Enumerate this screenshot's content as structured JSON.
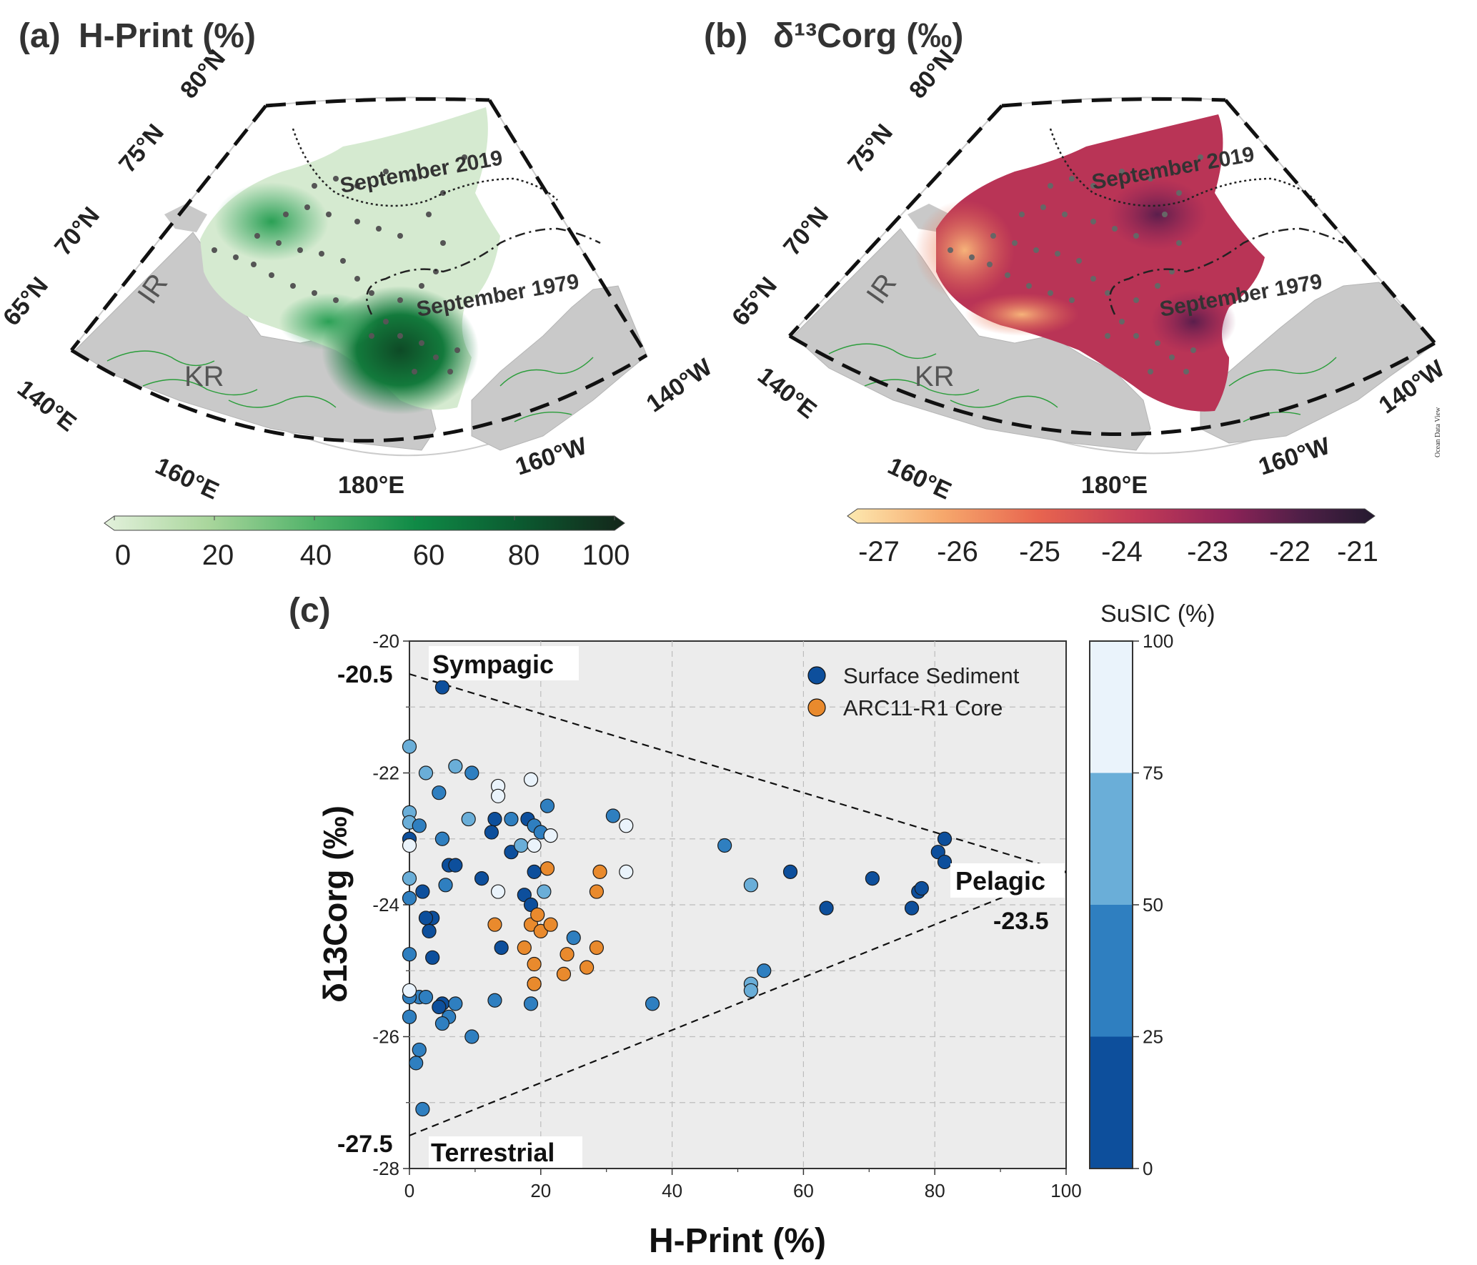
{
  "panel_a": {
    "label": "(a)",
    "title": "H-Print (%)",
    "lat_labels": [
      "80°N",
      "75°N",
      "70°N",
      "65°N"
    ],
    "lon_labels": [
      "140°E",
      "160°E",
      "180°E",
      "160°W",
      "140°W"
    ],
    "regions": [
      "IR",
      "KR"
    ],
    "ice_lines": [
      "September 2019",
      "September 1979"
    ],
    "colorbar_ticks": [
      "0",
      "20",
      "40",
      "60",
      "80",
      "100"
    ],
    "colorbar_colors": [
      "#e3f1dc",
      "#a9d69c",
      "#52b36a",
      "#0f8a46",
      "#0b5a30",
      "#14261a"
    ]
  },
  "panel_b": {
    "label": "(b)",
    "title": "δ¹³Corg (‰)",
    "lat_labels": [
      "80°N",
      "75°N",
      "70°N",
      "65°N"
    ],
    "lon_labels": [
      "140°E",
      "160°E",
      "180°E",
      "160°W",
      "140°W"
    ],
    "regions": [
      "IR",
      "KR"
    ],
    "ice_lines": [
      "September 2019",
      "September 1979"
    ],
    "watermark": "Ocean Data View",
    "colorbar_ticks": [
      "-27",
      "-26",
      "-25",
      "-24",
      "-23",
      "-22",
      "-21"
    ],
    "colorbar_colors": [
      "#fde9b0",
      "#f6a86c",
      "#e8654f",
      "#c23a57",
      "#8f2358",
      "#4f1f47",
      "#241a2f"
    ]
  },
  "panel_c": {
    "label": "(c)",
    "colorbar_title": "SuSIC (%)",
    "colorbar_ticks": [
      "0",
      "25",
      "50",
      "75",
      "100"
    ],
    "annotations": {
      "sympagic": "Sympagic",
      "pelagic": "Pelagic",
      "terrestrial": "Terrestrial",
      "sympagic_value": "-20.5",
      "pelagic_value": "-23.5",
      "terrestrial_value": "-27.5"
    }
  },
  "chart_data": {
    "type": "scatter",
    "xlabel": "H-Print (%)",
    "ylabel": "δ13Corg (‰)",
    "xlim": [
      0,
      100
    ],
    "ylim": [
      -28,
      -20
    ],
    "xticks": [
      "0",
      "20",
      "40",
      "60",
      "80",
      "100"
    ],
    "yticks": [
      "-28",
      "-26",
      "-24",
      "-22",
      "-20"
    ],
    "grid": true,
    "legend_position": "top-right",
    "mixing_lines": [
      {
        "from": [
          0,
          -20.5
        ],
        "to": [
          100,
          -23.5
        ]
      },
      {
        "from": [
          0,
          -27.5
        ],
        "to": [
          100,
          -23.5
        ]
      }
    ],
    "series": [
      {
        "name": "Surface Sediment",
        "legend_color": "#0d4f9c",
        "color_scale": {
          "name": "SuSIC (%)",
          "bins": [
            0,
            25,
            50,
            75,
            100
          ],
          "colors": [
            "#0d4f9c",
            "#2f7fc0",
            "#6aaed8",
            "#eaf3fb"
          ]
        },
        "points": [
          {
            "x": 5,
            "y": -20.7,
            "c": 10
          },
          {
            "x": 0,
            "y": -21.6,
            "c": 60
          },
          {
            "x": 2.5,
            "y": -22.0,
            "c": 55
          },
          {
            "x": 4.5,
            "y": -22.3,
            "c": 40
          },
          {
            "x": 7,
            "y": -21.9,
            "c": 55
          },
          {
            "x": 9.5,
            "y": -22.0,
            "c": 40
          },
          {
            "x": 0,
            "y": -22.6,
            "c": 60
          },
          {
            "x": 0,
            "y": -22.75,
            "c": 60
          },
          {
            "x": 1.5,
            "y": -22.8,
            "c": 40
          },
          {
            "x": 0,
            "y": -23.0,
            "c": 10
          },
          {
            "x": 0,
            "y": -23.1,
            "c": 80
          },
          {
            "x": 5,
            "y": -23.0,
            "c": 40
          },
          {
            "x": 9,
            "y": -22.7,
            "c": 60
          },
          {
            "x": 13,
            "y": -22.7,
            "c": 15
          },
          {
            "x": 12.5,
            "y": -22.9,
            "c": 10
          },
          {
            "x": 15.5,
            "y": -22.7,
            "c": 40
          },
          {
            "x": 18,
            "y": -22.7,
            "c": 10
          },
          {
            "x": 19,
            "y": -22.8,
            "c": 40
          },
          {
            "x": 20,
            "y": -22.9,
            "c": 40
          },
          {
            "x": 21,
            "y": -22.5,
            "c": 40
          },
          {
            "x": 15.5,
            "y": -23.2,
            "c": 15
          },
          {
            "x": 17,
            "y": -23.1,
            "c": 60
          },
          {
            "x": 31,
            "y": -22.65,
            "c": 40
          },
          {
            "x": 6,
            "y": -23.4,
            "c": 10
          },
          {
            "x": 7,
            "y": -23.4,
            "c": 10
          },
          {
            "x": 11,
            "y": -23.6,
            "c": 10
          },
          {
            "x": 19,
            "y": -23.5,
            "c": 10
          },
          {
            "x": 20.5,
            "y": -23.8,
            "c": 60
          },
          {
            "x": 17.5,
            "y": -23.85,
            "c": 15
          },
          {
            "x": 18.5,
            "y": -24.0,
            "c": 15
          },
          {
            "x": 5.5,
            "y": -23.7,
            "c": 40
          },
          {
            "x": 2,
            "y": -23.8,
            "c": 10
          },
          {
            "x": 0,
            "y": -23.6,
            "c": 60
          },
          {
            "x": 0,
            "y": -23.9,
            "c": 40
          },
          {
            "x": 3.5,
            "y": -24.2,
            "c": 10
          },
          {
            "x": 2.5,
            "y": -24.2,
            "c": 10
          },
          {
            "x": 3,
            "y": -24.4,
            "c": 10
          },
          {
            "x": 14,
            "y": -24.65,
            "c": 10
          },
          {
            "x": 3.5,
            "y": -24.8,
            "c": 10
          },
          {
            "x": 0,
            "y": -24.75,
            "c": 40
          },
          {
            "x": 19,
            "y": -25.2,
            "c": 40
          },
          {
            "x": 13,
            "y": -25.45,
            "c": 40
          },
          {
            "x": 18.5,
            "y": -25.5,
            "c": 40
          },
          {
            "x": 25,
            "y": -24.5,
            "c": 40
          },
          {
            "x": 37,
            "y": -25.5,
            "c": 40
          },
          {
            "x": 1.5,
            "y": -25.4,
            "c": 40
          },
          {
            "x": 2.5,
            "y": -25.4,
            "c": 40
          },
          {
            "x": 5,
            "y": -25.5,
            "c": 10
          },
          {
            "x": 4.5,
            "y": -25.55,
            "c": 10
          },
          {
            "x": 6,
            "y": -25.7,
            "c": 40
          },
          {
            "x": 7,
            "y": -25.5,
            "c": 40
          },
          {
            "x": 5,
            "y": -25.8,
            "c": 40
          },
          {
            "x": 0,
            "y": -25.7,
            "c": 40
          },
          {
            "x": 0,
            "y": -25.4,
            "c": 40
          },
          {
            "x": 9.5,
            "y": -26.0,
            "c": 40
          },
          {
            "x": 1.5,
            "y": -26.2,
            "c": 40
          },
          {
            "x": 1,
            "y": -26.4,
            "c": 40
          },
          {
            "x": 2,
            "y": -27.1,
            "c": 40
          },
          {
            "x": 48,
            "y": -23.1,
            "c": 40
          },
          {
            "x": 52,
            "y": -23.7,
            "c": 60
          },
          {
            "x": 58,
            "y": -23.5,
            "c": 10
          },
          {
            "x": 63.5,
            "y": -24.05,
            "c": 10
          },
          {
            "x": 70.5,
            "y": -23.6,
            "c": 10
          },
          {
            "x": 76.5,
            "y": -24.05,
            "c": 10
          },
          {
            "x": 77.5,
            "y": -23.8,
            "c": 10
          },
          {
            "x": 78,
            "y": -23.75,
            "c": 10
          },
          {
            "x": 80.5,
            "y": -23.2,
            "c": 10
          },
          {
            "x": 81.5,
            "y": -23.0,
            "c": 10
          },
          {
            "x": 81.5,
            "y": -23.35,
            "c": 10
          },
          {
            "x": 52,
            "y": -25.2,
            "c": 60
          },
          {
            "x": 52,
            "y": -25.3,
            "c": 60
          },
          {
            "x": 54,
            "y": -25.0,
            "c": 40
          },
          {
            "x": 13.5,
            "y": -22.2,
            "c": 90
          },
          {
            "x": 13.5,
            "y": -22.35,
            "c": 90
          },
          {
            "x": 18.5,
            "y": -22.1,
            "c": 90
          },
          {
            "x": 19,
            "y": -23.1,
            "c": 90
          },
          {
            "x": 21.5,
            "y": -22.95,
            "c": 90
          },
          {
            "x": 13.5,
            "y": -23.8,
            "c": 90
          },
          {
            "x": 33,
            "y": -22.8,
            "c": 90
          },
          {
            "x": 33,
            "y": -23.5,
            "c": 90
          },
          {
            "x": 0,
            "y": -25.3,
            "c": 90
          }
        ]
      },
      {
        "name": "ARC11-R1 Core",
        "color": "#e98a2d",
        "points": [
          {
            "x": 21,
            "y": -23.45
          },
          {
            "x": 29,
            "y": -23.5
          },
          {
            "x": 28.5,
            "y": -23.8
          },
          {
            "x": 13,
            "y": -24.3
          },
          {
            "x": 18.5,
            "y": -24.3
          },
          {
            "x": 19.5,
            "y": -24.15
          },
          {
            "x": 20,
            "y": -24.4
          },
          {
            "x": 21.5,
            "y": -24.3
          },
          {
            "x": 17.5,
            "y": -24.65
          },
          {
            "x": 24,
            "y": -24.75
          },
          {
            "x": 28.5,
            "y": -24.65
          },
          {
            "x": 19,
            "y": -24.9
          },
          {
            "x": 27,
            "y": -24.95
          },
          {
            "x": 23.5,
            "y": -25.05
          },
          {
            "x": 19,
            "y": -25.2
          }
        ]
      }
    ]
  }
}
